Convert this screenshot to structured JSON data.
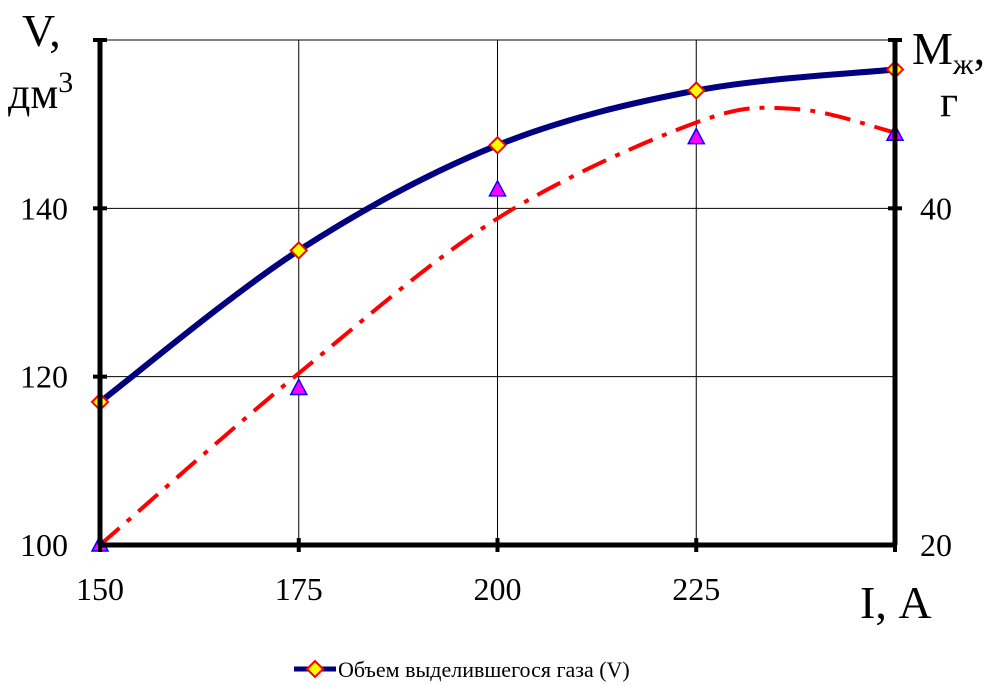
{
  "chart_data": {
    "type": "line",
    "x": [
      150,
      175,
      200,
      225,
      250
    ],
    "x_ticks": [
      "150",
      "175",
      "200",
      "225"
    ],
    "xlim": [
      150,
      250
    ],
    "xlabel": "I, А",
    "ylim": [
      100,
      160
    ],
    "y_ticks": [
      "100",
      "120",
      "140"
    ],
    "y_tick_values": [
      100,
      120,
      140
    ],
    "ylabel_line1": "V,",
    "ylabel_line2_base": "дм",
    "ylabel_line2_sup": "3",
    "y2lim": [
      20,
      50
    ],
    "y2_ticks": [
      "20",
      "40"
    ],
    "y2_tick_values": [
      20,
      40
    ],
    "y2label_base": "M",
    "y2label_sub": "ж",
    "y2label_comma": ",",
    "y2label_line2": "г",
    "grid": true,
    "legend_position": "bottom",
    "series": [
      {
        "name": "Объем выделившегося газа (V)",
        "axis": "left",
        "values": [
          117,
          135,
          147.5,
          154,
          156.5
        ],
        "color": "#000080",
        "marker": "diamond",
        "marker_fill": "#ffff00",
        "marker_stroke": "#ff0000",
        "line_style": "solid"
      },
      {
        "axis": "right",
        "values": [
          20,
          29.3,
          41.1,
          44.2,
          44.4
        ],
        "trend": [
          [
            150,
            20
          ],
          [
            175,
            30.2
          ],
          [
            200,
            39.4
          ],
          [
            225,
            45.1
          ],
          [
            237.5,
            45.9
          ],
          [
            250,
            44.5
          ]
        ],
        "color": "#ff0000",
        "marker": "triangle",
        "marker_fill": "#ff00ff",
        "marker_stroke": "#0000ff",
        "line_style": "dash-dot"
      }
    ]
  }
}
